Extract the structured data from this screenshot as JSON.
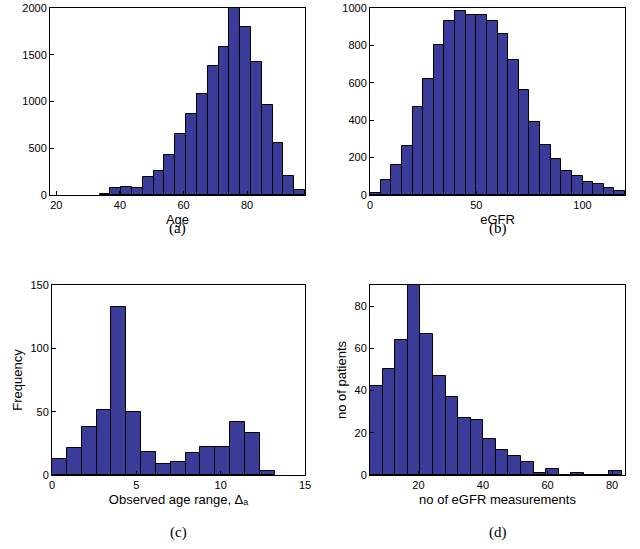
{
  "chart_data": [
    {
      "type": "histogram",
      "title": "(a)",
      "x_label": "Age",
      "bins": [
        33.6,
        37,
        40.4,
        43.8,
        47.2,
        50.6,
        54,
        57.4,
        60.8,
        64.2,
        67.6,
        71,
        74.4,
        77.8,
        81.2,
        84.6,
        88,
        91.4,
        94.8,
        98.2
      ],
      "values": [
        10,
        70,
        90,
        80,
        190,
        260,
        430,
        650,
        870,
        1080,
        1380,
        1580,
        2000,
        1800,
        1420,
        960,
        560,
        200,
        50
      ],
      "color": "#3b3b99",
      "xlim": [
        18,
        98.2
      ],
      "xticks": [
        20,
        40,
        60,
        80
      ],
      "ylim": [
        0,
        2000
      ],
      "yticks": [
        0,
        500,
        1000,
        1500,
        2000
      ],
      "grid": false
    },
    {
      "type": "histogram",
      "title": "(b)",
      "x_label": "eGFR",
      "bins": [
        0,
        5,
        10,
        15,
        20,
        25,
        30,
        35,
        40,
        45,
        50,
        55,
        60,
        65,
        70,
        75,
        80,
        85,
        90,
        95,
        100,
        105,
        110,
        115,
        120
      ],
      "values": [
        10,
        80,
        160,
        260,
        470,
        620,
        800,
        930,
        985,
        960,
        960,
        930,
        860,
        720,
        560,
        390,
        270,
        190,
        130,
        100,
        70,
        60,
        40,
        20
      ],
      "color": "#3b3b99",
      "xlim": [
        0,
        120
      ],
      "xticks": [
        0,
        50,
        100
      ],
      "ylim": [
        0,
        1000
      ],
      "yticks": [
        0,
        200,
        400,
        600,
        800,
        1000
      ],
      "grid": false
    },
    {
      "type": "histogram",
      "title": "(c)",
      "x_label": "Observed age range, Δₐ",
      "y_label": "Frequency",
      "bins": [
        0,
        0.88,
        1.76,
        2.64,
        3.52,
        4.4,
        5.28,
        6.16,
        7.04,
        7.92,
        8.8,
        9.68,
        10.56,
        11.44,
        12.32,
        13.2
      ],
      "values": [
        13,
        21,
        38,
        51,
        133,
        50,
        18,
        9,
        10,
        17,
        22,
        22,
        42,
        33,
        3
      ],
      "color": "#3b3b99",
      "xlim": [
        0,
        15
      ],
      "xticks": [
        0,
        5,
        10,
        15
      ],
      "ylim": [
        0,
        150
      ],
      "yticks": [
        0,
        50,
        100,
        150
      ],
      "grid": false
    },
    {
      "type": "histogram",
      "title": "(d)",
      "x_label": "no of eGFR measurements",
      "y_label": "no of patients",
      "bins": [
        5,
        8.9,
        12.8,
        16.7,
        20.6,
        24.5,
        28.4,
        32.3,
        36.2,
        40.1,
        44,
        47.9,
        51.8,
        55.7,
        59.6,
        63.5,
        67.4,
        71.3,
        75.2,
        79.1,
        83
      ],
      "values": [
        42,
        50,
        64,
        90,
        67,
        47,
        37,
        27,
        26,
        17,
        12,
        9,
        6,
        1,
        3,
        0,
        1,
        0,
        0,
        2
      ],
      "color": "#3b3b99",
      "xlim": [
        5,
        84
      ],
      "xticks": [
        20,
        40,
        60,
        80
      ],
      "ylim": [
        0,
        90
      ],
      "yticks": [
        0,
        20,
        40,
        60,
        80
      ],
      "grid": false
    }
  ]
}
